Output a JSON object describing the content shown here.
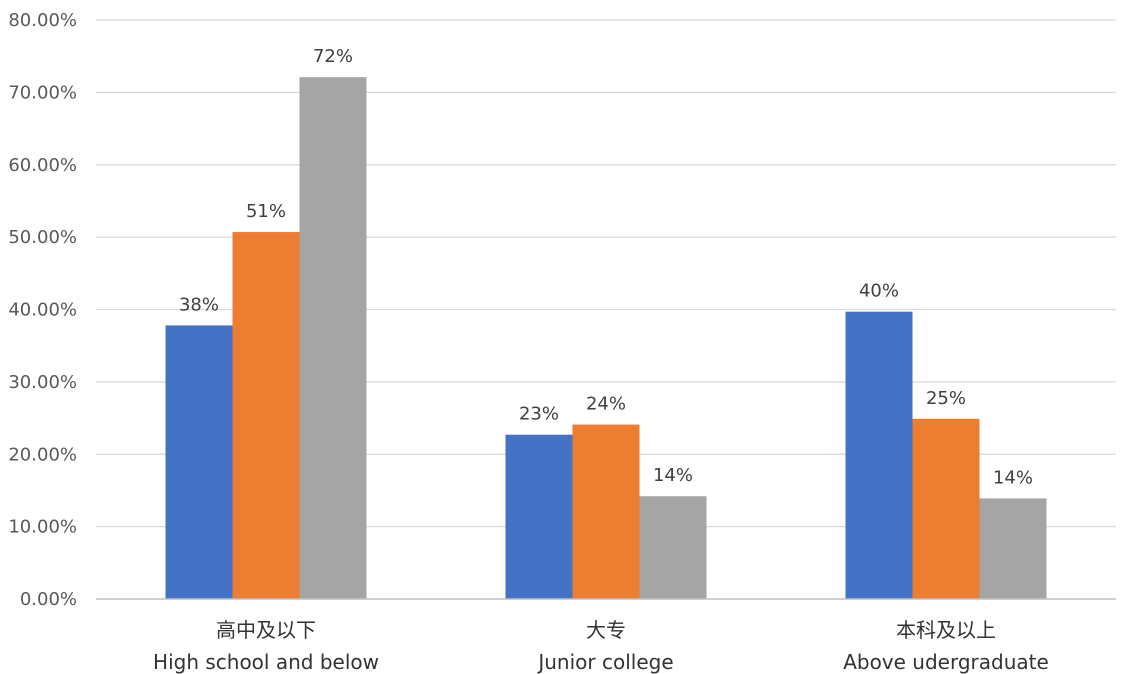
{
  "chart_data": {
    "type": "bar",
    "title": "",
    "xlabel": "",
    "ylabel": "",
    "ylim": [
      0,
      80
    ],
    "y_ticks": [
      0,
      10,
      20,
      30,
      40,
      50,
      60,
      70,
      80
    ],
    "y_tick_labels": [
      "0.00%",
      "10.00%",
      "20.00%",
      "30.00%",
      "40.00%",
      "50.00%",
      "60.00%",
      "70.00%",
      "80.00%"
    ],
    "grid": true,
    "legend": "none",
    "categories": [
      {
        "line1": "高中及以下",
        "line2": "High school and below"
      },
      {
        "line1": "大专",
        "line2": "Junior college"
      },
      {
        "line1": "本科及以上",
        "line2": "Above udergraduate"
      }
    ],
    "series": [
      {
        "color": "#4472C4",
        "values": [
          37.8,
          22.7,
          39.7
        ],
        "labels": [
          "38%",
          "23%",
          "40%"
        ]
      },
      {
        "color": "#ED7D31",
        "values": [
          50.7,
          24.1,
          24.9
        ],
        "labels": [
          "51%",
          "24%",
          "25%"
        ]
      },
      {
        "color": "#A5A5A5",
        "values": [
          72.1,
          14.2,
          13.9
        ],
        "labels": [
          "72%",
          "14%",
          "14%"
        ]
      }
    ]
  }
}
